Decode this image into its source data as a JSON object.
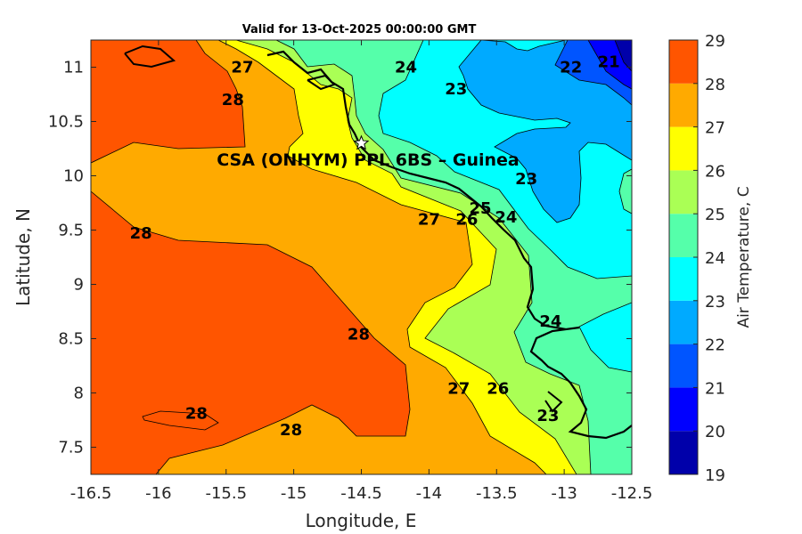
{
  "chart_data": {
    "type": "heatmap",
    "subtype": "filled-contour-map",
    "title": "Valid for 13-Oct-2025 00:00:00 GMT",
    "xlabel": "Longitude, E",
    "ylabel": "Latitude, N",
    "xlim": [
      -16.5,
      -12.5
    ],
    "ylim": [
      7.25,
      11.25
    ],
    "xticks": [
      "-16.5",
      "-16",
      "-15.5",
      "-15",
      "-14.5",
      "-14",
      "-13.5",
      "-13",
      "-12.5"
    ],
    "yticks": [
      "7.5",
      "8",
      "8.5",
      "9",
      "9.5",
      "10",
      "10.5",
      "11"
    ],
    "colorbar": {
      "label": "Air Temperature, C",
      "range": [
        19,
        29
      ],
      "ticks": [
        "19",
        "20",
        "21",
        "22",
        "23",
        "24",
        "25",
        "26",
        "27",
        "28",
        "29"
      ],
      "colors": [
        "#0000aa",
        "#0000ff",
        "#0055ff",
        "#00aaff",
        "#00ffff",
        "#55ffaa",
        "#aaff55",
        "#ffff00",
        "#ffaa00",
        "#ff5500"
      ]
    },
    "annotation": "CSA (ONHYM) PPL 6BS  – Guinea",
    "site_marker": {
      "lon": -14.5,
      "lat": 10.3,
      "symbol": "star"
    },
    "contour_labels": [
      {
        "text": "28",
        "lon": -15.45,
        "lat": 10.7
      },
      {
        "text": "28",
        "lon": -16.13,
        "lat": 9.47
      },
      {
        "text": "28",
        "lon": -14.52,
        "lat": 8.54
      },
      {
        "text": "28",
        "lon": -15.72,
        "lat": 7.81
      },
      {
        "text": "28",
        "lon": -15.02,
        "lat": 7.66
      },
      {
        "text": "27",
        "lon": -15.38,
        "lat": 11.0
      },
      {
        "text": "27",
        "lon": -14.0,
        "lat": 9.6
      },
      {
        "text": "27",
        "lon": -13.78,
        "lat": 8.04
      },
      {
        "text": "26",
        "lon": -13.49,
        "lat": 8.04
      },
      {
        "text": "26",
        "lon": -13.72,
        "lat": 9.6
      },
      {
        "text": "25",
        "lon": -13.62,
        "lat": 9.7
      },
      {
        "text": "24",
        "lon": -14.17,
        "lat": 11.0
      },
      {
        "text": "24",
        "lon": -13.43,
        "lat": 9.62
      },
      {
        "text": "24",
        "lon": -13.1,
        "lat": 8.66
      },
      {
        "text": "23",
        "lon": -13.8,
        "lat": 10.8
      },
      {
        "text": "23",
        "lon": -13.28,
        "lat": 9.97
      },
      {
        "text": "23",
        "lon": -13.12,
        "lat": 7.79
      },
      {
        "text": "22",
        "lon": -12.95,
        "lat": 11.0
      },
      {
        "text": "21",
        "lon": -12.67,
        "lat": 11.05
      }
    ]
  }
}
